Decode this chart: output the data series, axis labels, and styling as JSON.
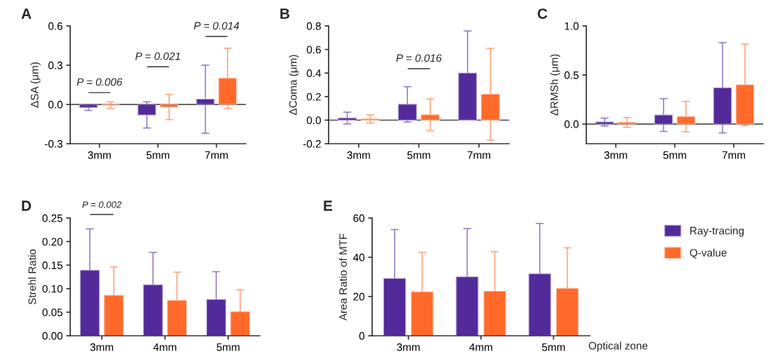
{
  "chart_data": [
    {
      "type": "bar",
      "title": "A",
      "ylabel": "ΔSA (μm)",
      "categories": [
        "3mm",
        "5mm",
        "7mm"
      ],
      "series": [
        {
          "color": "#522a9a",
          "values": [
            -0.023,
            -0.08,
            0.04
          ],
          "errors": [
            0.023,
            0.1,
            0.26
          ]
        },
        {
          "color": "#ff6a2b",
          "values": [
            -0.006,
            -0.02,
            0.2
          ],
          "errors": [
            0.026,
            0.096,
            0.23
          ]
        }
      ],
      "ylim": [
        -0.3,
        0.6
      ],
      "yticks": [
        -0.3,
        {
          "value": 0,
          "label": "0.0"
        },
        0.3,
        0.6
      ],
      "ref_lines": [
        {
          "axis": "y",
          "value": 0,
          "color": "#333333"
        }
      ],
      "annotations": [
        "P = 0.006",
        "P = 0.021",
        "P = 0.014"
      ]
    },
    {
      "type": "bar",
      "title": "B",
      "ylabel": "ΔComa (μm)",
      "categories": [
        "3mm",
        "5mm",
        "7mm"
      ],
      "series": [
        {
          "color": "#522a9a",
          "values": [
            0.018,
            0.134,
            0.4
          ],
          "errors": [
            0.05,
            0.15,
            0.357
          ]
        },
        {
          "color": "#ff6a2b",
          "values": [
            0.01,
            0.045,
            0.22
          ],
          "errors": [
            0.035,
            0.135,
            0.39
          ]
        }
      ],
      "ylim": [
        -0.2,
        0.8
      ],
      "yticks": [
        -0.2,
        {
          "value": 0,
          "label": "0.0"
        },
        0.2,
        0.4,
        0.6,
        0.8
      ],
      "ref_lines": [
        {
          "axis": "y",
          "value": 0,
          "color": "#333333"
        }
      ],
      "annotations": [
        "P = 0.016"
      ]
    },
    {
      "type": "bar",
      "title": "C",
      "ylabel": "ΔRMSh (μm)",
      "categories": [
        "3mm",
        "5mm",
        "7mm"
      ],
      "series": [
        {
          "color": "#522a9a",
          "values": [
            0.021,
            0.092,
            0.37
          ],
          "errors": [
            0.04,
            0.167,
            0.46
          ]
        },
        {
          "color": "#ff6a2b",
          "values": [
            0.017,
            0.076,
            0.4
          ],
          "errors": [
            0.05,
            0.155,
            0.415
          ]
        }
      ],
      "ylim": [
        -0.2,
        1.0
      ],
      "yticks": [
        {
          "value": 0,
          "label": "0.0"
        },
        0.5,
        {
          "value": 1,
          "label": "1.0"
        }
      ],
      "ref_lines": [
        {
          "axis": "y",
          "value": 0,
          "color": "#333333"
        }
      ]
    },
    {
      "type": "bar",
      "title": "D",
      "ylabel": "Strehl Ratio",
      "categories": [
        "3mm",
        "4mm",
        "5mm"
      ],
      "series": [
        {
          "color": "#522a9a",
          "values": [
            0.139,
            0.108,
            0.077
          ],
          "errors": [
            0.088,
            0.069,
            0.059
          ]
        },
        {
          "color": "#ff6a2b",
          "values": [
            0.086,
            0.075,
            0.051
          ],
          "errors": [
            0.06,
            0.06,
            0.046
          ]
        }
      ],
      "ylim": [
        0,
        0.25
      ],
      "yticks": [
        {
          "value": 0,
          "label": "0.00"
        },
        {
          "value": 0.05,
          "label": "0.05"
        },
        {
          "value": 0.1,
          "label": "0.10"
        },
        {
          "value": 0.15,
          "label": "0.15"
        },
        {
          "value": 0.2,
          "label": "0.20"
        },
        {
          "value": 0.25,
          "label": "0.25"
        }
      ],
      "annotations": [
        "P = 0.002"
      ]
    },
    {
      "type": "bar",
      "title": "E",
      "ylabel": "Area Ratio of MTF",
      "xlabel": "Optical zone",
      "categories": [
        "3mm",
        "4mm",
        "5mm"
      ],
      "series": [
        {
          "name": "Ray-tracing",
          "color": "#522a9a",
          "values": [
            29.2,
            30.0,
            31.5
          ],
          "errors": [
            24.9,
            24.6,
            25.7
          ]
        },
        {
          "name": "Q-value",
          "color": "#ff6a2b",
          "values": [
            22.4,
            22.7,
            24.1
          ],
          "errors": [
            20.1,
            20.1,
            20.7
          ]
        }
      ],
      "ylim": [
        0,
        60
      ],
      "yticks": [
        0,
        20,
        40,
        60
      ],
      "legend": "right"
    }
  ]
}
